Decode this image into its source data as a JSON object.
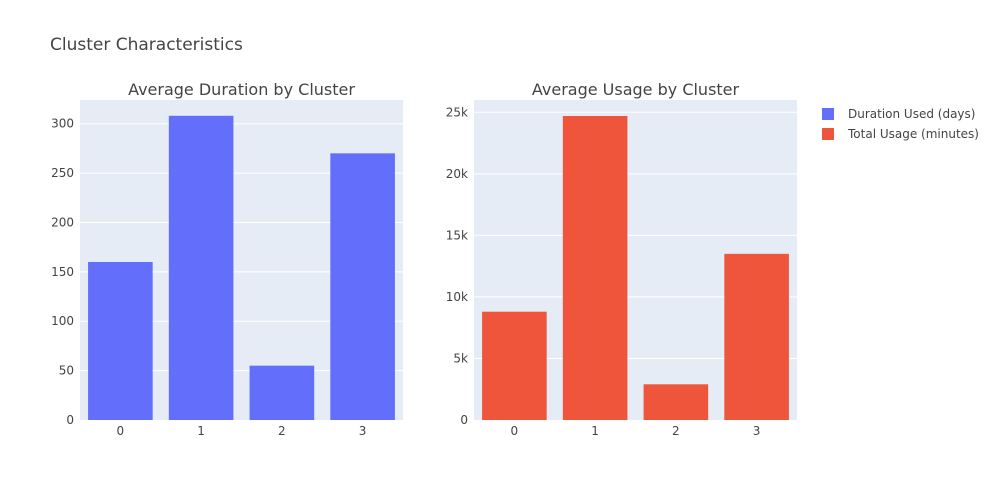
{
  "title": "Cluster Characteristics",
  "colors": {
    "plot_bg": "#e5ecf6",
    "grid": "#ffffff",
    "series_blue": "#636efa",
    "series_red": "#ef553b"
  },
  "legend": {
    "placement": "top-right",
    "items": [
      {
        "label": "Duration Used (days)",
        "color": "#636efa"
      },
      {
        "label": "Total Usage (minutes)",
        "color": "#ef553b"
      }
    ]
  },
  "chart_data": [
    {
      "type": "bar",
      "title": "Average Duration by Cluster",
      "categories": [
        "0",
        "1",
        "2",
        "3"
      ],
      "series": [
        {
          "name": "Duration Used (days)",
          "values": [
            160,
            308,
            55,
            270
          ]
        }
      ],
      "ylim": [
        0,
        324
      ],
      "yticks": [
        0,
        50,
        100,
        150,
        200,
        250,
        300
      ],
      "ytick_labels": [
        "0",
        "50",
        "100",
        "150",
        "200",
        "250",
        "300"
      ],
      "grid": true
    },
    {
      "type": "bar",
      "title": "Average Usage by Cluster",
      "categories": [
        "0",
        "1",
        "2",
        "3"
      ],
      "series": [
        {
          "name": "Total Usage (minutes)",
          "values": [
            8800,
            24700,
            2900,
            13500
          ]
        }
      ],
      "ylim": [
        0,
        26000
      ],
      "yticks": [
        0,
        5000,
        10000,
        15000,
        20000,
        25000
      ],
      "ytick_labels": [
        "0",
        "5k",
        "10k",
        "15k",
        "20k",
        "25k"
      ],
      "grid": true
    }
  ]
}
